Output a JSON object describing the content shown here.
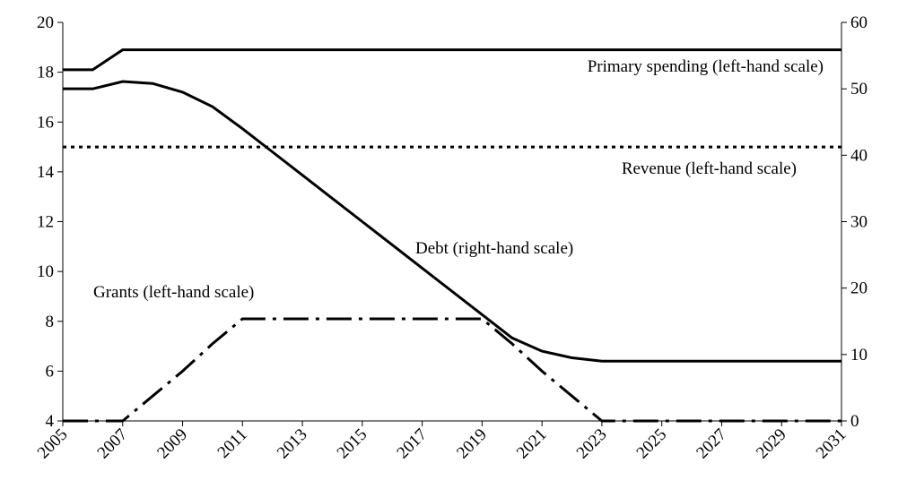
{
  "chart_data": {
    "type": "line",
    "x": [
      2005,
      2006,
      2007,
      2008,
      2009,
      2010,
      2011,
      2012,
      2013,
      2014,
      2015,
      2016,
      2017,
      2018,
      2019,
      2020,
      2021,
      2022,
      2023,
      2024,
      2025,
      2026,
      2027,
      2028,
      2029,
      2030,
      2031
    ],
    "xlim": [
      2005,
      2031
    ],
    "xticks": [
      2005,
      2007,
      2009,
      2011,
      2013,
      2015,
      2017,
      2019,
      2021,
      2023,
      2025,
      2027,
      2029,
      2031
    ],
    "ylim": [
      4,
      20
    ],
    "yticks": [
      4,
      6,
      8,
      10,
      12,
      14,
      16,
      18,
      20
    ],
    "y2lim": [
      0,
      60
    ],
    "y2ticks": [
      0,
      10,
      20,
      30,
      40,
      50,
      60
    ],
    "grid": false,
    "series": [
      {
        "name": "Primary spending (left-hand scale)",
        "color": "#000000",
        "line_style": "solid",
        "values": [
          18.1,
          18.1,
          18.9,
          18.9,
          18.9,
          18.9,
          18.9,
          18.9,
          18.9,
          18.9,
          18.9,
          18.9,
          18.9,
          18.9,
          18.9,
          18.9,
          18.9,
          18.9,
          18.9,
          18.9,
          18.9,
          18.9,
          18.9,
          18.9,
          18.9,
          18.9,
          18.9
        ]
      },
      {
        "name": "Revenue (left-hand scale)",
        "color": "#000000",
        "line_style": "dotted",
        "values": [
          15,
          15,
          15,
          15,
          15,
          15,
          15,
          15,
          15,
          15,
          15,
          15,
          15,
          15,
          15,
          15,
          15,
          15,
          15,
          15,
          15,
          15,
          15,
          15,
          15,
          15,
          15
        ]
      },
      {
        "name": "Debt (right-hand scale)",
        "color": "#000000",
        "line_style": "solid",
        "axis": "y2",
        "values": [
          50,
          50,
          51.1,
          50.8,
          49.5,
          47.3,
          44,
          40.5,
          37,
          33.5,
          30,
          26.5,
          23,
          19.5,
          16,
          12.5,
          10.5,
          9.5,
          9,
          9,
          9,
          9,
          9,
          9,
          9,
          9,
          9
        ]
      },
      {
        "name": "Grants (left-hand scale)",
        "color": "#000000",
        "line_style": "dashdot",
        "values": [
          4,
          4,
          4,
          5,
          6,
          7.1,
          8.1,
          8.1,
          8.1,
          8.1,
          8.1,
          8.1,
          8.1,
          8.1,
          8.1,
          7.1,
          6,
          5,
          4,
          4,
          4,
          4,
          4,
          4,
          4,
          4,
          4
        ]
      }
    ]
  }
}
